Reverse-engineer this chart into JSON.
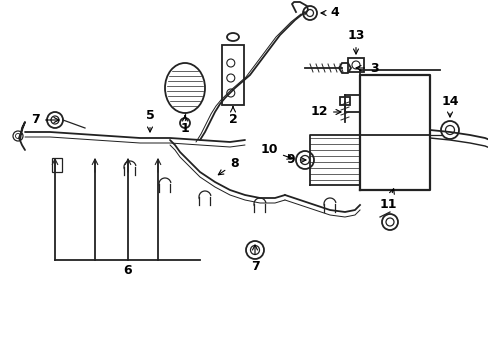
{
  "background": "#ffffff",
  "line_color": "#222222",
  "label_color": "#000000",
  "lw_main": 1.3,
  "lw_thin": 0.9,
  "label_fontsize": 9,
  "figsize": [
    4.89,
    3.6
  ],
  "dpi": 100,
  "xlim": [
    0,
    489
  ],
  "ylim": [
    0,
    360
  ]
}
